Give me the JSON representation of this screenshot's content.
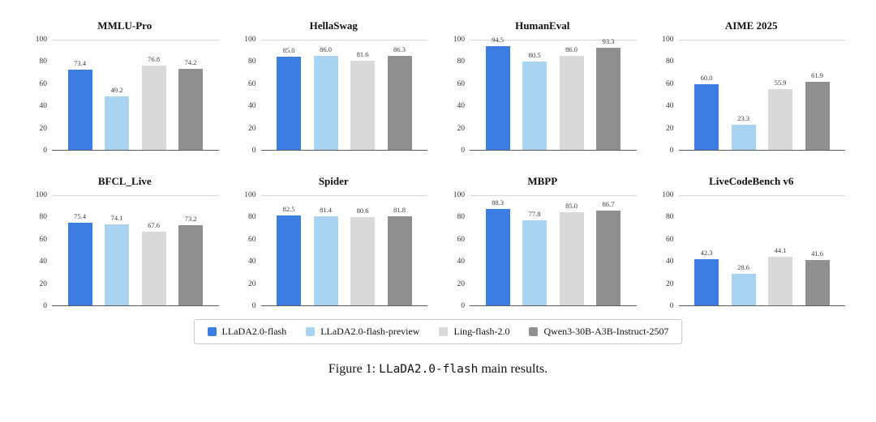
{
  "colors": {
    "series": [
      "#3b7de0",
      "#a9d4f1",
      "#d9d9d9",
      "#8f8f8f"
    ],
    "axis_top": "#d8d8d8",
    "axis_bottom": "#5a5a5a"
  },
  "series_names": [
    "LLaDA2.0-flash",
    "LLaDA2.0-flash-preview",
    "Ling-flash-2.0",
    "Qwen3-30B-A3B-Instruct-2507"
  ],
  "legend": {
    "items": [
      {
        "label": "LLaDA2.0-flash",
        "color": "#3b7de0"
      },
      {
        "label": "LLaDA2.0-flash-preview",
        "color": "#a9d4f1"
      },
      {
        "label": "Ling-flash-2.0",
        "color": "#d9d9d9"
      },
      {
        "label": "Qwen3-30B-A3B-Instruct-2507",
        "color": "#8f8f8f"
      }
    ]
  },
  "caption": {
    "prefix": "Figure 1: ",
    "code": "LLaDA2.0-flash",
    "suffix": " main results."
  },
  "chart_data": [
    {
      "type": "bar",
      "title": "MMLU-Pro",
      "categories": [
        "LLaDA2.0-flash",
        "LLaDA2.0-flash-preview",
        "Ling-flash-2.0",
        "Qwen3-30B-A3B-Instruct-2507"
      ],
      "values": [
        73.4,
        49.2,
        76.8,
        74.2
      ],
      "xlabel": "",
      "ylabel": "",
      "ylim": [
        0,
        100
      ],
      "yticks": [
        0,
        20,
        40,
        60,
        80,
        100
      ],
      "grid": false,
      "legend_position": "shared-bottom"
    },
    {
      "type": "bar",
      "title": "HellaSwag",
      "categories": [
        "LLaDA2.0-flash",
        "LLaDA2.0-flash-preview",
        "Ling-flash-2.0",
        "Qwen3-30B-A3B-Instruct-2507"
      ],
      "values": [
        85.0,
        86.0,
        81.6,
        86.3
      ],
      "xlabel": "",
      "ylabel": "",
      "ylim": [
        0,
        100
      ],
      "yticks": [
        0,
        20,
        40,
        60,
        80,
        100
      ],
      "grid": false,
      "legend_position": "shared-bottom"
    },
    {
      "type": "bar",
      "title": "HumanEval",
      "categories": [
        "LLaDA2.0-flash",
        "LLaDA2.0-flash-preview",
        "Ling-flash-2.0",
        "Qwen3-30B-A3B-Instruct-2507"
      ],
      "values": [
        94.5,
        80.5,
        86.0,
        93.3
      ],
      "xlabel": "",
      "ylabel": "",
      "ylim": [
        0,
        100
      ],
      "yticks": [
        0,
        20,
        40,
        60,
        80,
        100
      ],
      "grid": false,
      "legend_position": "shared-bottom"
    },
    {
      "type": "bar",
      "title": "AIME 2025",
      "categories": [
        "LLaDA2.0-flash",
        "LLaDA2.0-flash-preview",
        "Ling-flash-2.0",
        "Qwen3-30B-A3B-Instruct-2507"
      ],
      "values": [
        60.0,
        23.3,
        55.9,
        61.9
      ],
      "xlabel": "",
      "ylabel": "",
      "ylim": [
        0,
        100
      ],
      "yticks": [
        0,
        20,
        40,
        60,
        80,
        100
      ],
      "grid": false,
      "legend_position": "shared-bottom"
    },
    {
      "type": "bar",
      "title": "BFCL_Live",
      "categories": [
        "LLaDA2.0-flash",
        "LLaDA2.0-flash-preview",
        "Ling-flash-2.0",
        "Qwen3-30B-A3B-Instruct-2507"
      ],
      "values": [
        75.4,
        74.1,
        67.6,
        73.2
      ],
      "xlabel": "",
      "ylabel": "",
      "ylim": [
        0,
        100
      ],
      "yticks": [
        0,
        20,
        40,
        60,
        80,
        100
      ],
      "grid": false,
      "legend_position": "shared-bottom"
    },
    {
      "type": "bar",
      "title": "Spider",
      "categories": [
        "LLaDA2.0-flash",
        "LLaDA2.0-flash-preview",
        "Ling-flash-2.0",
        "Qwen3-30B-A3B-Instruct-2507"
      ],
      "values": [
        82.5,
        81.4,
        80.6,
        81.8
      ],
      "xlabel": "",
      "ylabel": "",
      "ylim": [
        0,
        100
      ],
      "yticks": [
        0,
        20,
        40,
        60,
        80,
        100
      ],
      "grid": false,
      "legend_position": "shared-bottom"
    },
    {
      "type": "bar",
      "title": "MBPP",
      "categories": [
        "LLaDA2.0-flash",
        "LLaDA2.0-flash-preview",
        "Ling-flash-2.0",
        "Qwen3-30B-A3B-Instruct-2507"
      ],
      "values": [
        88.3,
        77.8,
        85.0,
        86.7
      ],
      "xlabel": "",
      "ylabel": "",
      "ylim": [
        0,
        100
      ],
      "yticks": [
        0,
        20,
        40,
        60,
        80,
        100
      ],
      "grid": false,
      "legend_position": "shared-bottom"
    },
    {
      "type": "bar",
      "title": "LiveCodeBench v6",
      "categories": [
        "LLaDA2.0-flash",
        "LLaDA2.0-flash-preview",
        "Ling-flash-2.0",
        "Qwen3-30B-A3B-Instruct-2507"
      ],
      "values": [
        42.3,
        28.6,
        44.1,
        41.6
      ],
      "xlabel": "",
      "ylabel": "",
      "ylim": [
        0,
        100
      ],
      "yticks": [
        0,
        20,
        40,
        60,
        80,
        100
      ],
      "grid": false,
      "legend_position": "shared-bottom"
    }
  ]
}
